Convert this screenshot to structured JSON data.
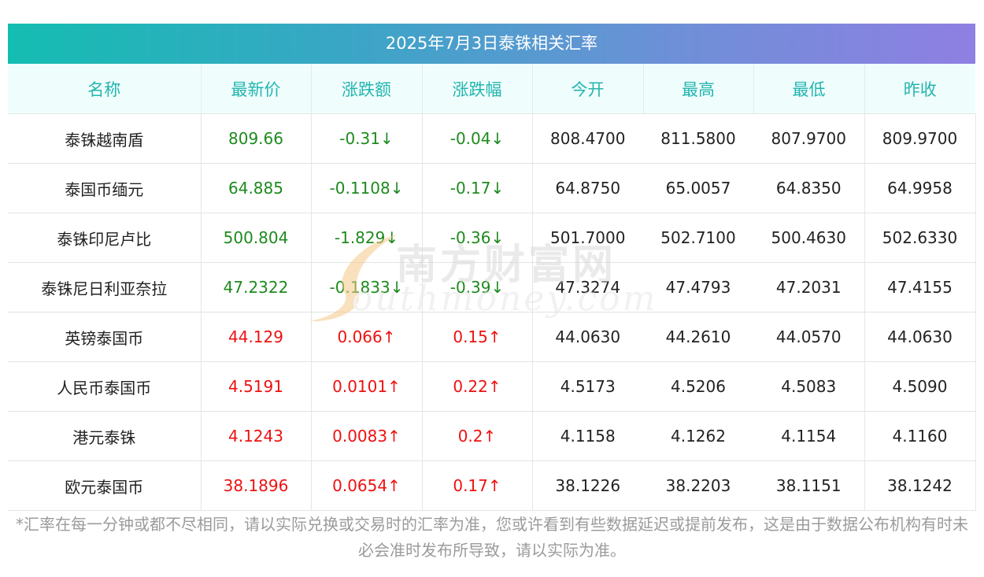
{
  "title": "2025年7月3日泰铢相关汇率",
  "columns": [
    "名称",
    "最新价",
    "涨跌额",
    "涨跌幅",
    "今开",
    "最高",
    "最低",
    "昨收"
  ],
  "rows": [
    {
      "name": "泰铢越南盾",
      "latest": "809.66",
      "change": "-0.31↓",
      "pct": "-0.04↓",
      "open": "808.4700",
      "high": "811.5800",
      "low": "807.9700",
      "prev": "809.9700",
      "dir": "down"
    },
    {
      "name": "泰国币缅元",
      "latest": "64.885",
      "change": "-0.1108↓",
      "pct": "-0.17↓",
      "open": "64.8750",
      "high": "65.0057",
      "low": "64.8350",
      "prev": "64.9958",
      "dir": "down"
    },
    {
      "name": "泰铢印尼卢比",
      "latest": "500.804",
      "change": "-1.829↓",
      "pct": "-0.36↓",
      "open": "501.7000",
      "high": "502.7100",
      "low": "500.4630",
      "prev": "502.6330",
      "dir": "down"
    },
    {
      "name": "泰铢尼日利亚奈拉",
      "latest": "47.2322",
      "change": "-0.1833↓",
      "pct": "-0.39↓",
      "open": "47.3274",
      "high": "47.4793",
      "low": "47.2031",
      "prev": "47.4155",
      "dir": "down"
    },
    {
      "name": "英镑泰国币",
      "latest": "44.129",
      "change": "0.066↑",
      "pct": "0.15↑",
      "open": "44.0630",
      "high": "44.2610",
      "low": "44.0570",
      "prev": "44.0630",
      "dir": "up"
    },
    {
      "name": "人民币泰国币",
      "latest": "4.5191",
      "change": "0.0101↑",
      "pct": "0.22↑",
      "open": "4.5173",
      "high": "4.5206",
      "low": "4.5083",
      "prev": "4.5090",
      "dir": "up"
    },
    {
      "name": "港元泰铢",
      "latest": "4.1243",
      "change": "0.0083↑",
      "pct": "0.2↑",
      "open": "4.1158",
      "high": "4.1262",
      "low": "4.1154",
      "prev": "4.1160",
      "dir": "up"
    },
    {
      "name": "欧元泰国币",
      "latest": "38.1896",
      "change": "0.0654↑",
      "pct": "0.17↑",
      "open": "38.1226",
      "high": "38.2203",
      "low": "38.1151",
      "prev": "38.1242",
      "dir": "up"
    }
  ],
  "note": "*汇率在每一分钟或都不尽相同，请以实际兑换或交易时的汇率为准，您或许看到有些数据延迟或提前发布，这是由于数据公布机构有时未必会准时发布所导致，请以实际为准。",
  "watermark": {
    "cn": "南方财富网",
    "en": "outhmoney.com"
  },
  "colors": {
    "down": "#1e8a1e",
    "up": "#ee1111",
    "header_text": "#22b5ae"
  }
}
